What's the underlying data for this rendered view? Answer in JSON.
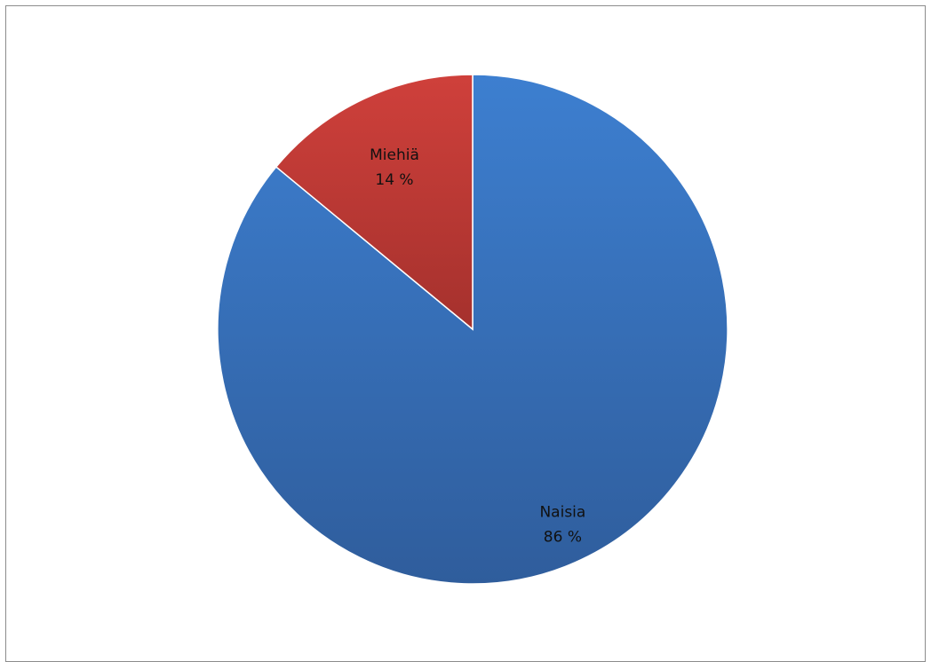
{
  "chart_data": {
    "type": "pie",
    "title": "",
    "slices": [
      {
        "label": "Naisia",
        "value": 86,
        "value_label": "86 %",
        "color": "#3c72bd"
      },
      {
        "label": "Miehiä",
        "value": 14,
        "value_label": "14 %",
        "color": "#bb3a36"
      }
    ],
    "start_angle": "12 o'clock",
    "direction": "clockwise",
    "legend": "none",
    "data_labels": "inside"
  }
}
